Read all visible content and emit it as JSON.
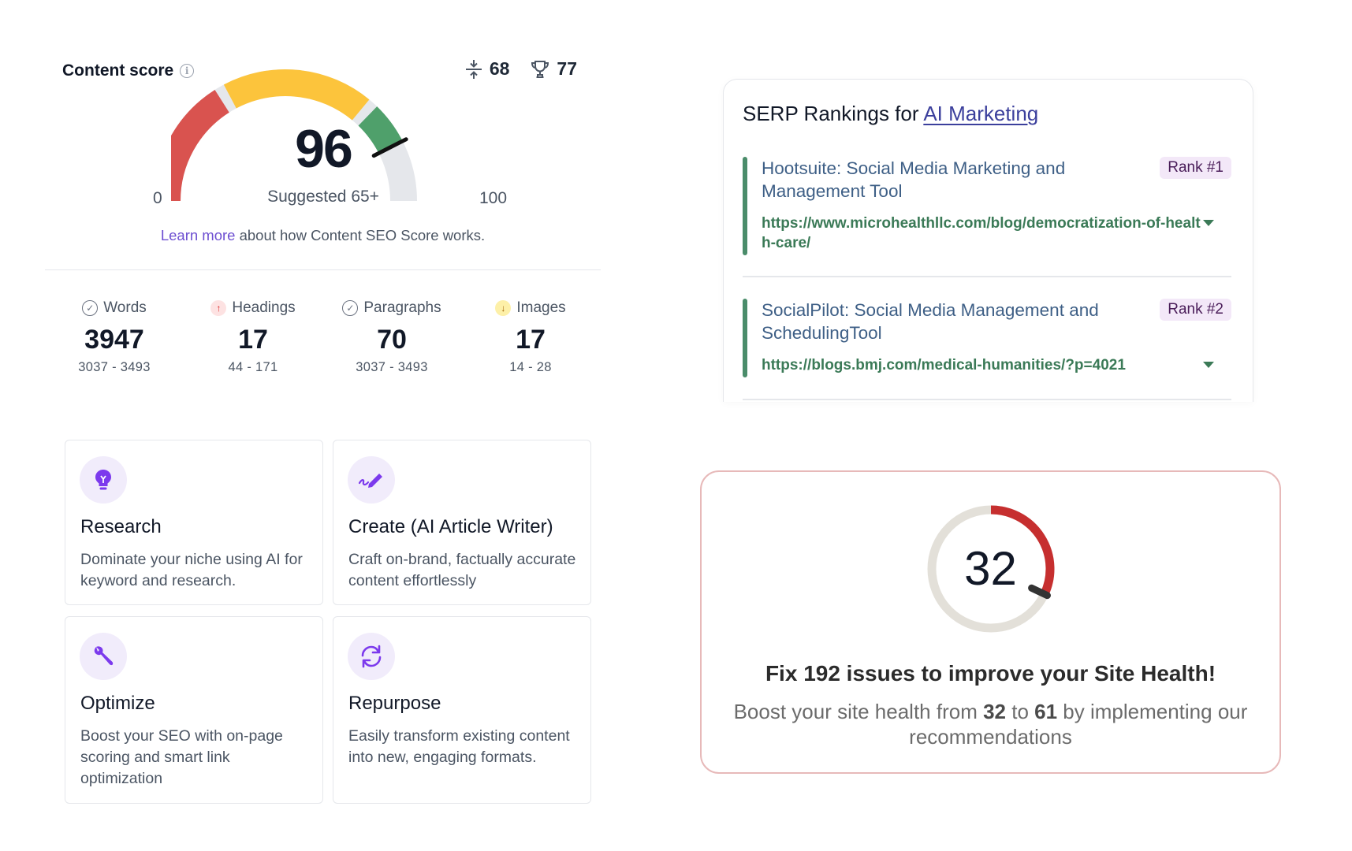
{
  "content_score": {
    "title": "Content score",
    "competitor_avg": "68",
    "top_score": "77",
    "value": "96",
    "score_fraction": 0.96,
    "suggested": "Suggested 65+",
    "min_label": "0",
    "max_label": "100",
    "learn_more_link": "Learn more",
    "learn_more_text": " about how Content SEO Score works.",
    "colors": {
      "red": "#d9534f",
      "yellow": "#fcc43c",
      "green": "#4fa06b",
      "track": "#e5e7eb"
    },
    "metrics": [
      {
        "label": "Words",
        "value": "3947",
        "range": "3037 - 3493",
        "status": "check"
      },
      {
        "label": "Headings",
        "value": "17",
        "range": "44 - 171",
        "status": "up"
      },
      {
        "label": "Paragraphs",
        "value": "70",
        "range": "3037 - 3493",
        "status": "check"
      },
      {
        "label": "Images",
        "value": "17",
        "range": "14 - 28",
        "status": "down"
      }
    ]
  },
  "serp": {
    "title_prefix": "SERP Rankings for ",
    "keyword": "AI Marketing",
    "results": [
      {
        "title": "Hootsuite: Social Media Marketing and Management Tool",
        "rank": "Rank #1",
        "url": "https://www.microhealthllc.com/blog/democratization-of-health-care/"
      },
      {
        "title": "SocialPilot: Social Media Management and SchedulingTool",
        "rank": "Rank #2",
        "url": "https://blogs.bmj.com/medical-humanities/?p=4021"
      }
    ]
  },
  "features": [
    {
      "icon": "lightbulb-icon",
      "title": "Research",
      "desc": "Dominate your niche using AI for keyword and research."
    },
    {
      "icon": "pen-icon",
      "title": "Create (AI Article Writer)",
      "desc": "Craft on-brand, factually accurate content effortlessly"
    },
    {
      "icon": "wrench-icon",
      "title": "Optimize",
      "desc": "Boost your SEO with on-page scoring and smart link optimization"
    },
    {
      "icon": "refresh-icon",
      "title": "Repurpose",
      "desc": "Easily transform existing content into new, engaging formats."
    }
  ],
  "site_health": {
    "value": "32",
    "score_fraction": 0.32,
    "title": "Fix 192 issues to improve your Site Health!",
    "desc_prefix": "Boost your site health from ",
    "from": "32",
    "desc_mid": " to ",
    "to": "61",
    "desc_suffix": " by implementing our recommendations",
    "colors": {
      "arc": "#c62f2f",
      "track": "#e3e0d9",
      "knob": "#333333"
    }
  }
}
